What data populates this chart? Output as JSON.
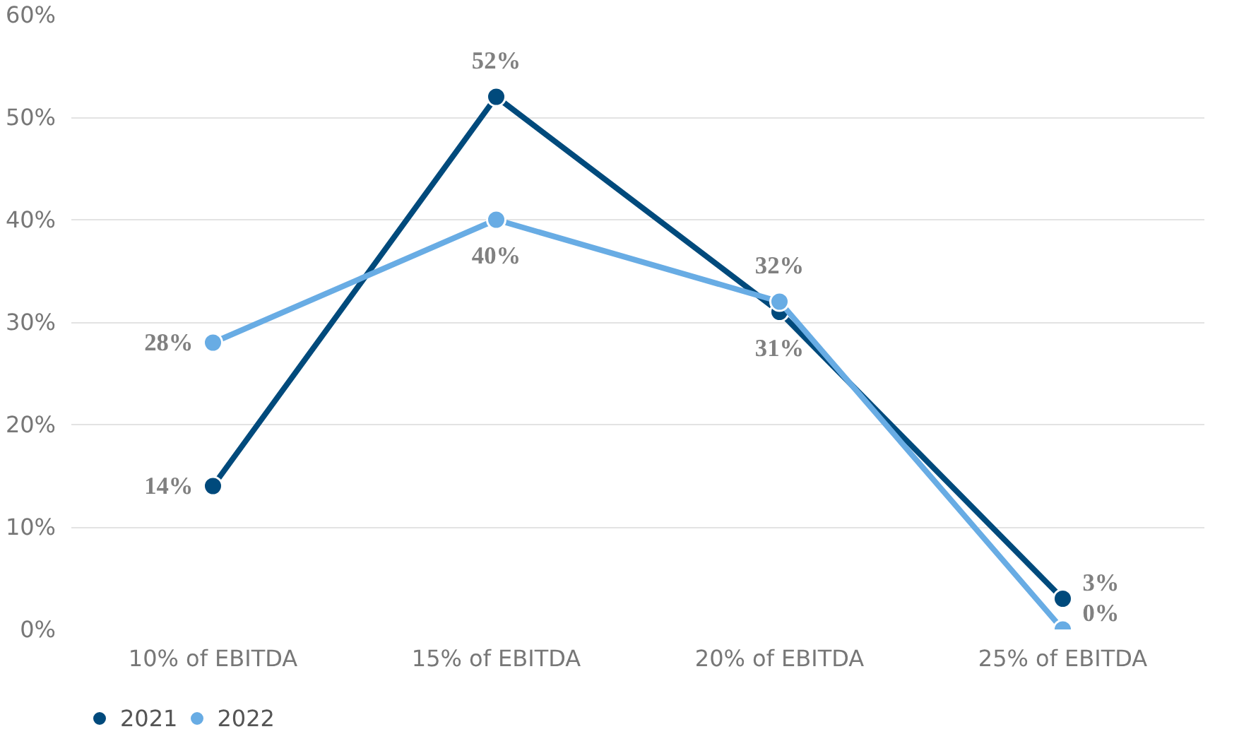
{
  "chart_data": {
    "type": "line",
    "categories": [
      "10% of EBITDA",
      "15% of EBITDA",
      "20% of EBITDA",
      "25% of EBITDA"
    ],
    "series": [
      {
        "name": "2021",
        "color": "#004a7c",
        "values": [
          14,
          52,
          31,
          3
        ],
        "value_labels": [
          "14%",
          "52%",
          "31%",
          "3%"
        ]
      },
      {
        "name": "2022",
        "color": "#68ace4",
        "values": [
          28,
          40,
          32,
          0
        ],
        "value_labels": [
          "28%",
          "40%",
          "32%",
          "0%"
        ]
      }
    ],
    "ylim": [
      0,
      60
    ],
    "yticks": [
      {
        "value": 0,
        "label": "0%"
      },
      {
        "value": 10,
        "label": "10%"
      },
      {
        "value": 20,
        "label": "20%"
      },
      {
        "value": 30,
        "label": "30%"
      },
      {
        "value": 40,
        "label": "40%"
      },
      {
        "value": 50,
        "label": "50%"
      },
      {
        "value": 60,
        "label": "60%"
      }
    ],
    "grid": "y",
    "legend": "bottom left",
    "marker": "circle",
    "line_style": "solid"
  }
}
